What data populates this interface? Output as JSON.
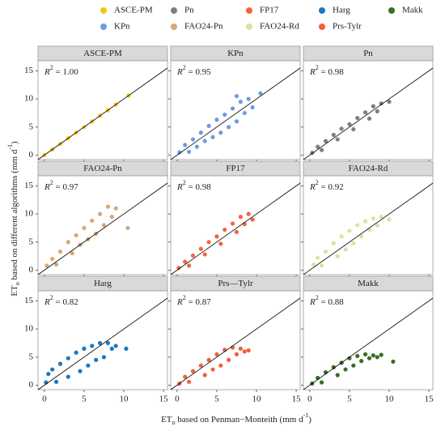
{
  "xlabel": [
    "ET",
    "o",
    " based on Penman−Monteith (mm d",
    "-1",
    ")"
  ],
  "ylabel": [
    "ET",
    "o",
    " based on different algorithms (mm d",
    "-1",
    ")"
  ],
  "chart_data": [
    {
      "type": "scatter",
      "title": "ASCE-PM",
      "annotation": [
        "R",
        "2",
        " = 1.00"
      ],
      "xlim": [
        -0.8,
        15.5
      ],
      "ylim": [
        -0.8,
        16.8
      ],
      "xticks": [
        0,
        5,
        10,
        15
      ],
      "yticks": [
        0,
        5,
        10,
        15
      ],
      "series": [
        {
          "name": "ASCE-PM",
          "color": "#f5c518",
          "x": [
            0,
            1,
            2,
            3,
            4,
            5,
            6,
            7,
            8,
            9,
            10.6
          ],
          "y": [
            0,
            1,
            2,
            3,
            4,
            5,
            6,
            7,
            8,
            9,
            10.6
          ]
        }
      ]
    },
    {
      "type": "scatter",
      "title": "KPn",
      "annotation": [
        "R",
        "2",
        " = 0.95"
      ],
      "xlim": [
        -0.8,
        15.5
      ],
      "ylim": [
        -0.8,
        16.8
      ],
      "xticks": [
        0,
        5,
        10,
        15
      ],
      "yticks": [
        0,
        5,
        10,
        15
      ],
      "series": [
        {
          "name": "KPn",
          "color": "#6f9be0",
          "x": [
            0.3,
            1,
            1.5,
            2,
            2.5,
            3,
            3.5,
            4,
            4.5,
            5,
            5.5,
            6,
            6.5,
            7,
            7.5,
            8,
            8.5,
            9,
            9.5,
            10.5,
            7.5
          ],
          "y": [
            0.5,
            1.8,
            0.6,
            2.8,
            1.5,
            4,
            2.5,
            5.2,
            3.2,
            6.3,
            4,
            7.2,
            5,
            8.3,
            6,
            9.5,
            7.5,
            10,
            8.5,
            11,
            10.5
          ]
        }
      ]
    },
    {
      "type": "scatter",
      "title": "Pn",
      "annotation": [
        "R",
        "2",
        " = 0.98"
      ],
      "xlim": [
        -0.8,
        15.5
      ],
      "ylim": [
        -0.8,
        16.8
      ],
      "xticks": [
        0,
        5,
        10,
        15
      ],
      "yticks": [
        0,
        5,
        10,
        15
      ],
      "series": [
        {
          "name": "Pn",
          "color": "#7f7f7f",
          "x": [
            0.3,
            1,
            1.5,
            2,
            3,
            3.5,
            4,
            5,
            5.5,
            6,
            7,
            7.5,
            8,
            8.5,
            9,
            10
          ],
          "y": [
            0.4,
            1.5,
            0.9,
            2.5,
            3.6,
            2.8,
            4.7,
            5.5,
            4.6,
            6.6,
            7.6,
            6.5,
            8.7,
            7.8,
            9.2,
            9.5
          ]
        }
      ]
    },
    {
      "type": "scatter",
      "title": "FAO24-Pn",
      "annotation": [
        "R",
        "2",
        " = 0.97"
      ],
      "xlim": [
        -0.8,
        15.5
      ],
      "ylim": [
        -0.8,
        16.8
      ],
      "xticks": [
        0,
        5,
        10,
        15
      ],
      "yticks": [
        0,
        5,
        10,
        15
      ],
      "series": [
        {
          "name": "FAO24-Pn",
          "color": "#d4a878",
          "x": [
            0.3,
            1,
            1.5,
            2,
            3,
            3.5,
            4,
            4.5,
            5,
            5.5,
            6,
            6.5,
            7,
            7.5,
            8,
            8.5,
            9,
            10.5
          ],
          "y": [
            0.8,
            2,
            1,
            3.3,
            5,
            3,
            6.2,
            4.5,
            7.5,
            5.5,
            8.8,
            6.5,
            10,
            8,
            11.3,
            9.5,
            11,
            7.5
          ]
        }
      ]
    },
    {
      "type": "scatter",
      "title": "FP17",
      "annotation": [
        "R",
        "2",
        " = 0.98"
      ],
      "xlim": [
        -0.8,
        15.5
      ],
      "ylim": [
        -0.8,
        16.8
      ],
      "xticks": [
        0,
        5,
        10,
        15
      ],
      "yticks": [
        0,
        5,
        10,
        15
      ],
      "series": [
        {
          "name": "FP17",
          "color": "#f2653c",
          "x": [
            0.2,
            1,
            1.5,
            2,
            3,
            3.5,
            4,
            5,
            5.5,
            6,
            7,
            7.5,
            8,
            8.5,
            9,
            9.5
          ],
          "y": [
            0.4,
            1.5,
            0.8,
            2.6,
            3.8,
            2.8,
            5,
            6,
            4.7,
            7.2,
            8.3,
            6.8,
            9.5,
            8.2,
            10,
            9
          ]
        }
      ]
    },
    {
      "type": "scatter",
      "title": "FAO24-Rd",
      "annotation": [
        "R",
        "2",
        " = 0.92"
      ],
      "xlim": [
        -0.8,
        15.5
      ],
      "ylim": [
        -0.8,
        16.8
      ],
      "xticks": [
        0,
        5,
        10,
        15
      ],
      "yticks": [
        0,
        5,
        10,
        15
      ],
      "series": [
        {
          "name": "FAO24-Rd",
          "color": "#d4e6a0",
          "x": [
            0.5,
            1,
            1.5,
            2,
            3,
            3.5,
            4,
            4.5,
            5,
            5.5,
            6,
            6.5,
            7,
            7.5,
            8,
            8.5,
            9,
            10
          ],
          "y": [
            1,
            2.2,
            0.8,
            3.3,
            4.8,
            2.5,
            6,
            3.7,
            7,
            4.8,
            8,
            6,
            8.7,
            7.2,
            9.2,
            8,
            9.5,
            9
          ]
        }
      ]
    },
    {
      "type": "scatter",
      "title": "Harg",
      "annotation": [
        "R",
        "2",
        " = 0.82"
      ],
      "xlim": [
        -0.8,
        15.5
      ],
      "ylim": [
        -0.8,
        16.8
      ],
      "xticks": [
        0,
        5,
        10,
        15
      ],
      "yticks": [
        0,
        5,
        10,
        15
      ],
      "series": [
        {
          "name": "Harg",
          "color": "#1a78c0",
          "x": [
            0.2,
            0.5,
            1,
            1.5,
            2,
            3,
            3,
            4,
            4.5,
            5,
            5.5,
            6,
            6.5,
            7,
            7.5,
            8,
            8.5,
            9,
            10.3
          ],
          "y": [
            0.5,
            2,
            2.8,
            0.6,
            3.8,
            4.8,
            1.5,
            5.8,
            2.5,
            6.5,
            3.5,
            7,
            4.5,
            7.5,
            5,
            7.5,
            6.5,
            7,
            6.5
          ]
        }
      ]
    },
    {
      "type": "scatter",
      "title": "Prs—Tylr",
      "annotation": [
        "R",
        "2",
        " = 0.87"
      ],
      "xlim": [
        -0.8,
        15.5
      ],
      "ylim": [
        -0.8,
        16.8
      ],
      "xticks": [
        0,
        5,
        10,
        15
      ],
      "yticks": [
        0,
        5,
        10,
        15
      ],
      "series": [
        {
          "name": "Prs-Tylr",
          "color": "#f0603a",
          "x": [
            0.3,
            1,
            1.5,
            2,
            3,
            3.5,
            4,
            4.5,
            5,
            5.5,
            6,
            6.5,
            7,
            7.5,
            8,
            8.5,
            9
          ],
          "y": [
            0.3,
            1.5,
            0.6,
            2.5,
            3.5,
            1.8,
            4.5,
            2.8,
            5.5,
            3.5,
            6.3,
            4.5,
            6.7,
            5.5,
            6.5,
            6,
            6.2
          ]
        }
      ]
    },
    {
      "type": "scatter",
      "title": "Makk",
      "annotation": [
        "R",
        "2",
        " = 0.88"
      ],
      "xlim": [
        -0.8,
        15.5
      ],
      "ylim": [
        -0.8,
        16.8
      ],
      "xticks": [
        0,
        5,
        10,
        15
      ],
      "yticks": [
        0,
        5,
        10,
        15
      ],
      "series": [
        {
          "name": "Makk",
          "color": "#3a6e22",
          "x": [
            0.3,
            1,
            1.5,
            2,
            3,
            3.5,
            4,
            4.5,
            5,
            5.5,
            6,
            6.5,
            7,
            7.5,
            8,
            8.5,
            9,
            10.5
          ],
          "y": [
            0.3,
            1.3,
            0.5,
            2.3,
            3.2,
            1.8,
            4,
            2.8,
            4.8,
            3.5,
            5.2,
            4.3,
            5.5,
            4.8,
            5.3,
            5,
            5.4,
            4.2
          ]
        }
      ]
    }
  ]
}
